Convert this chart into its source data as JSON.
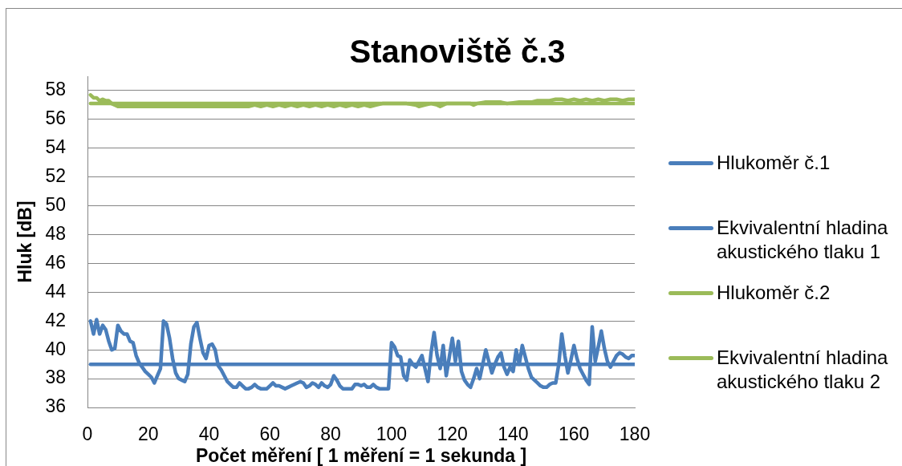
{
  "chart_data": {
    "type": "line",
    "title": "Stanoviště č.3",
    "xlabel": "Počet měření [ 1 měření = 1 sekunda ]",
    "ylabel": "Hluk [dB]",
    "xlim": [
      0,
      180
    ],
    "xticks": [
      0,
      20,
      40,
      60,
      80,
      100,
      120,
      140,
      160,
      180
    ],
    "ylim": [
      36,
      59
    ],
    "yticks": [
      36,
      38,
      40,
      42,
      44,
      46,
      48,
      50,
      52,
      54,
      56,
      58
    ],
    "grid": "y",
    "legend": "right",
    "series": [
      {
        "name": "Hlukoměr č.1",
        "color": "#4a7ebb",
        "x": [
          1,
          2,
          3,
          4,
          5,
          6,
          7,
          8,
          9,
          10,
          11,
          12,
          13,
          14,
          15,
          16,
          17,
          18,
          19,
          20,
          21,
          22,
          23,
          24,
          25,
          26,
          27,
          28,
          29,
          30,
          31,
          32,
          33,
          34,
          35,
          36,
          37,
          38,
          39,
          40,
          41,
          42,
          43,
          44,
          45,
          46,
          47,
          48,
          49,
          50,
          51,
          52,
          53,
          54,
          55,
          56,
          57,
          58,
          59,
          60,
          61,
          62,
          63,
          64,
          65,
          66,
          67,
          68,
          69,
          70,
          71,
          72,
          73,
          74,
          75,
          76,
          77,
          78,
          79,
          80,
          81,
          82,
          83,
          84,
          85,
          86,
          87,
          88,
          89,
          90,
          91,
          92,
          93,
          94,
          95,
          96,
          97,
          98,
          99,
          100,
          101,
          102,
          103,
          104,
          105,
          106,
          107,
          108,
          109,
          110,
          111,
          112,
          113,
          114,
          115,
          116,
          117,
          118,
          119,
          120,
          121,
          122,
          123,
          124,
          125,
          126,
          127,
          128,
          129,
          130,
          131,
          132,
          133,
          134,
          135,
          136,
          137,
          138,
          139,
          140,
          141,
          142,
          143,
          144,
          145,
          146,
          147,
          148,
          149,
          150,
          151,
          152,
          153,
          154,
          155,
          156,
          157,
          158,
          159,
          160,
          161,
          162,
          163,
          164,
          165,
          166,
          167,
          168,
          169,
          170,
          171,
          172,
          173,
          174,
          175,
          176,
          177,
          178,
          179,
          180
        ],
        "values": [
          42.0,
          41.1,
          42.1,
          41.1,
          41.7,
          41.4,
          40.6,
          40.0,
          40.1,
          41.7,
          41.3,
          41.1,
          41.1,
          40.6,
          40.5,
          39.6,
          39.1,
          38.8,
          38.5,
          38.3,
          38.1,
          37.7,
          38.2,
          38.7,
          42.0,
          41.8,
          40.8,
          39.4,
          38.4,
          38.0,
          37.9,
          37.8,
          38.3,
          40.4,
          41.6,
          41.9,
          40.8,
          39.8,
          39.4,
          40.3,
          40.4,
          40.0,
          38.9,
          38.6,
          38.2,
          37.8,
          37.6,
          37.4,
          37.4,
          37.7,
          37.5,
          37.3,
          37.3,
          37.4,
          37.6,
          37.4,
          37.3,
          37.3,
          37.3,
          37.5,
          37.7,
          37.5,
          37.5,
          37.4,
          37.3,
          37.4,
          37.5,
          37.6,
          37.7,
          37.8,
          37.7,
          37.4,
          37.5,
          37.7,
          37.6,
          37.4,
          37.7,
          37.5,
          37.4,
          37.6,
          38.2,
          37.9,
          37.5,
          37.3,
          37.3,
          37.3,
          37.3,
          37.6,
          37.6,
          37.5,
          37.6,
          37.4,
          37.4,
          37.6,
          37.4,
          37.3,
          37.3,
          37.3,
          37.3,
          40.5,
          40.2,
          39.6,
          39.5,
          38.2,
          37.9,
          39.3,
          39.0,
          38.8,
          39.2,
          39.6,
          38.7,
          37.8,
          39.8,
          41.2,
          39.6,
          38.7,
          40.3,
          38.2,
          39.5,
          40.8,
          39.2,
          40.6,
          38.5,
          37.9,
          37.6,
          37.4,
          38.0,
          38.7,
          38.0,
          39.0,
          40.0,
          39.2,
          38.4,
          39.0,
          39.5,
          39.8,
          38.8,
          38.3,
          38.8,
          38.5,
          40.0,
          39.0,
          40.3,
          39.5,
          38.7,
          38.1,
          37.9,
          37.7,
          37.5,
          37.4,
          37.4,
          37.6,
          37.7,
          37.7,
          39.0,
          41.1,
          39.6,
          38.4,
          39.3,
          40.3,
          39.4,
          38.7,
          38.3,
          37.9,
          37.6,
          41.6,
          39.2,
          40.2,
          41.3,
          40.1,
          39.2,
          38.8,
          39.2,
          39.6,
          39.8,
          39.7,
          39.5,
          39.4,
          39.6,
          39.6
        ]
      },
      {
        "name": "Ekvivalentní hladina akustického tlaku 1",
        "color": "#4a7ebb",
        "x": [
          1,
          180
        ],
        "values": [
          39.0,
          39.0
        ]
      },
      {
        "name": "Hlukoměr č.2",
        "color": "#9bbb59",
        "x": [
          1,
          2,
          3,
          4,
          5,
          6,
          7,
          8,
          9,
          10,
          11,
          20,
          30,
          40,
          50,
          53,
          55,
          57,
          59,
          61,
          63,
          65,
          67,
          69,
          71,
          73,
          75,
          77,
          79,
          81,
          83,
          85,
          87,
          89,
          91,
          93,
          95,
          97,
          100,
          105,
          108,
          109,
          111,
          113,
          115,
          116,
          118,
          122,
          126,
          127,
          128,
          131,
          133,
          136,
          138,
          142,
          146,
          148,
          152,
          154,
          156,
          158,
          160,
          162,
          164,
          166,
          168,
          170,
          172,
          174,
          176,
          178,
          180
        ],
        "values": [
          57.7,
          57.5,
          57.5,
          57.3,
          57.4,
          57.3,
          57.3,
          57.1,
          57.0,
          56.9,
          56.9,
          56.9,
          56.9,
          56.9,
          56.9,
          56.9,
          57.0,
          56.9,
          57.0,
          56.9,
          57.0,
          56.9,
          57.0,
          56.9,
          57.0,
          56.9,
          57.0,
          56.9,
          57.0,
          56.9,
          57.0,
          56.9,
          57.0,
          56.9,
          57.0,
          56.9,
          57.0,
          57.1,
          57.1,
          57.1,
          57.0,
          56.9,
          57.0,
          57.1,
          57.0,
          56.9,
          57.1,
          57.1,
          57.1,
          57.0,
          57.1,
          57.2,
          57.2,
          57.2,
          57.1,
          57.2,
          57.2,
          57.3,
          57.3,
          57.4,
          57.4,
          57.3,
          57.4,
          57.3,
          57.4,
          57.3,
          57.4,
          57.3,
          57.4,
          57.4,
          57.3,
          57.4,
          57.4
        ]
      },
      {
        "name": "Ekvivalentní hladina akustického tlaku 2",
        "color": "#9bbb59",
        "x": [
          1,
          180
        ],
        "values": [
          57.1,
          57.1
        ]
      }
    ]
  }
}
